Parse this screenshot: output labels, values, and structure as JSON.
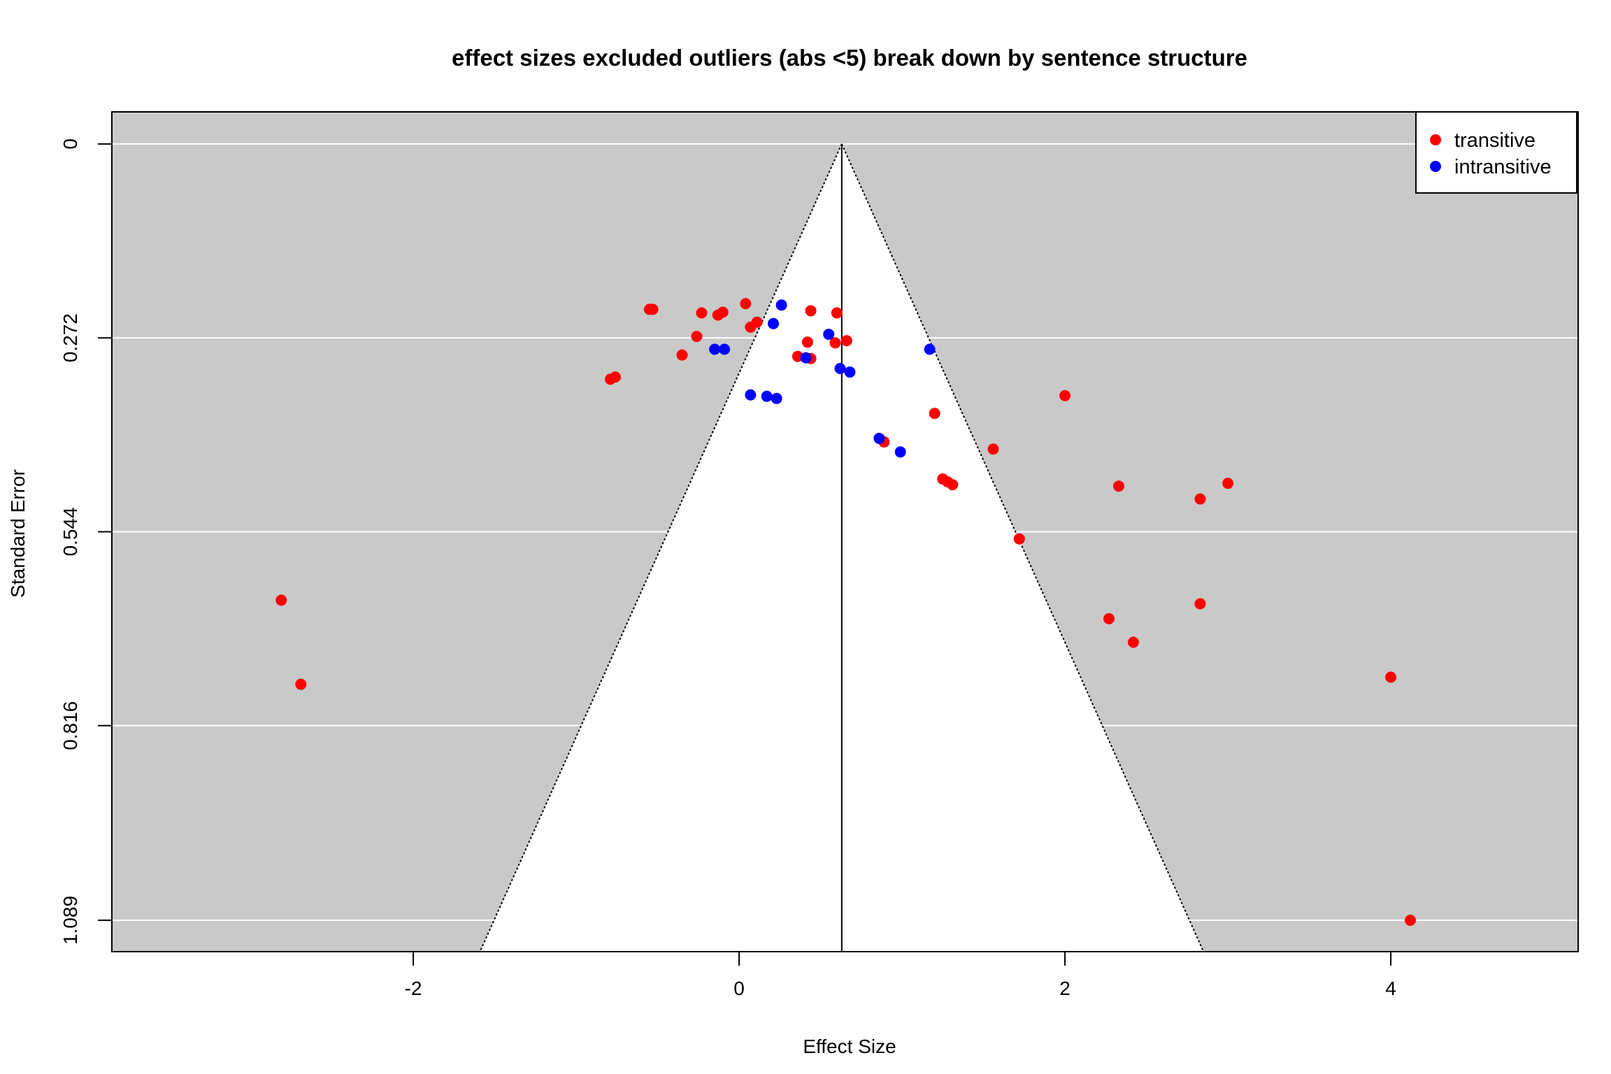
{
  "chart_data": {
    "type": "scatter",
    "title": "effect sizes excluded outliers (abs <5) break down by sentence structure",
    "xlabel": "Effect Size",
    "ylabel": "Standard Error",
    "xlim": [
      -3.85,
      5.15
    ],
    "ylim": [
      1.133,
      -0.045
    ],
    "y_reversed": true,
    "x_ticks": [
      -2,
      0,
      2,
      4
    ],
    "x_tick_labels": [
      "-2",
      "0",
      "2",
      "4"
    ],
    "y_ticks": [
      0,
      0.272,
      0.544,
      0.816,
      1.089
    ],
    "y_tick_labels": [
      "0",
      "0.272",
      "0.544",
      "0.816",
      "1.089"
    ],
    "horizontal_grid": true,
    "background_color": "#c9c9c9",
    "grid_color": "#ffffff",
    "funnel": {
      "center": 0.63,
      "apex_se": 0,
      "multiplier": 1.96,
      "fill_color": "#ffffff"
    },
    "legend": {
      "position": "top-right",
      "entries": [
        {
          "label": "transitive",
          "color": "#ff0000"
        },
        {
          "label": "intransitive",
          "color": "#0000ff"
        }
      ]
    },
    "series": [
      {
        "name": "transitive",
        "color": "#ff0000",
        "points": [
          {
            "x": -0.55,
            "y": 0.232
          },
          {
            "x": -0.53,
            "y": 0.232
          },
          {
            "x": -0.23,
            "y": 0.237
          },
          {
            "x": -0.13,
            "y": 0.24
          },
          {
            "x": -0.1,
            "y": 0.236
          },
          {
            "x": 0.04,
            "y": 0.224
          },
          {
            "x": 0.07,
            "y": 0.257
          },
          {
            "x": 0.11,
            "y": 0.25
          },
          {
            "x": -0.26,
            "y": 0.27
          },
          {
            "x": -0.35,
            "y": 0.296
          },
          {
            "x": -0.79,
            "y": 0.33
          },
          {
            "x": -0.76,
            "y": 0.327
          },
          {
            "x": 0.44,
            "y": 0.234
          },
          {
            "x": 0.6,
            "y": 0.237
          },
          {
            "x": 0.66,
            "y": 0.276
          },
          {
            "x": 0.59,
            "y": 0.279
          },
          {
            "x": 0.42,
            "y": 0.278
          },
          {
            "x": 0.36,
            "y": 0.298
          },
          {
            "x": 0.44,
            "y": 0.301
          },
          {
            "x": 1.2,
            "y": 0.378
          },
          {
            "x": 0.89,
            "y": 0.418
          },
          {
            "x": 1.56,
            "y": 0.428
          },
          {
            "x": 1.25,
            "y": 0.47
          },
          {
            "x": 1.28,
            "y": 0.474
          },
          {
            "x": 1.31,
            "y": 0.478
          },
          {
            "x": 2.0,
            "y": 0.353
          },
          {
            "x": 2.33,
            "y": 0.48
          },
          {
            "x": 2.83,
            "y": 0.498
          },
          {
            "x": 3.0,
            "y": 0.476
          },
          {
            "x": 1.72,
            "y": 0.554
          },
          {
            "x": 2.27,
            "y": 0.666
          },
          {
            "x": 2.42,
            "y": 0.699
          },
          {
            "x": 2.83,
            "y": 0.645
          },
          {
            "x": 4.0,
            "y": 0.748
          },
          {
            "x": 4.12,
            "y": 1.089
          },
          {
            "x": -2.81,
            "y": 0.64
          },
          {
            "x": -2.69,
            "y": 0.758
          }
        ]
      },
      {
        "name": "intransitive",
        "color": "#0000ff",
        "points": [
          {
            "x": 0.26,
            "y": 0.226
          },
          {
            "x": 0.21,
            "y": 0.252
          },
          {
            "x": 0.55,
            "y": 0.267
          },
          {
            "x": -0.15,
            "y": 0.288
          },
          {
            "x": -0.09,
            "y": 0.288
          },
          {
            "x": 0.41,
            "y": 0.3
          },
          {
            "x": 0.62,
            "y": 0.315
          },
          {
            "x": 0.68,
            "y": 0.32
          },
          {
            "x": 1.17,
            "y": 0.288
          },
          {
            "x": 0.07,
            "y": 0.352
          },
          {
            "x": 0.17,
            "y": 0.354
          },
          {
            "x": 0.23,
            "y": 0.357
          },
          {
            "x": 0.86,
            "y": 0.413
          },
          {
            "x": 0.99,
            "y": 0.432
          }
        ]
      }
    ]
  }
}
